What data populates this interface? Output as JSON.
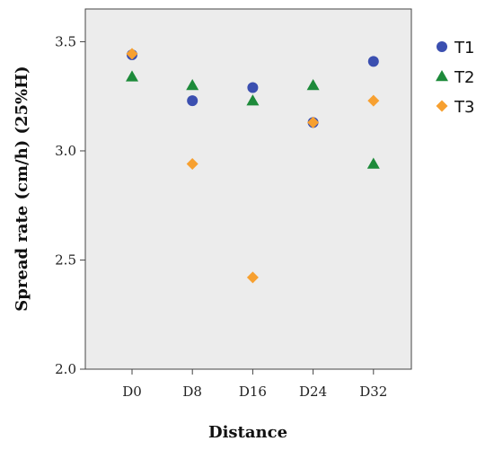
{
  "chart_data": {
    "type": "scatter",
    "title": "",
    "xlabel": "Distance",
    "ylabel": "Spread rate (cm/h) (25%H)",
    "categories": [
      "D0",
      "D8",
      "D16",
      "D24",
      "D32"
    ],
    "ylim": [
      2.0,
      3.65
    ],
    "yticks": [
      "2.0",
      "2.5",
      "3.0",
      "3.5"
    ],
    "grid": false,
    "legend": "right",
    "series": [
      {
        "name": "T1",
        "marker": "circle",
        "color": "#3b4fb0",
        "values": [
          3.44,
          3.23,
          3.29,
          3.13,
          3.41
        ]
      },
      {
        "name": "T2",
        "marker": "triangle",
        "color": "#1d8a3a",
        "values": [
          3.34,
          3.3,
          3.23,
          3.3,
          2.94
        ]
      },
      {
        "name": "T3",
        "marker": "diamond",
        "color": "#f7a030",
        "values": [
          3.445,
          2.94,
          2.42,
          3.13,
          3.23
        ]
      }
    ]
  }
}
